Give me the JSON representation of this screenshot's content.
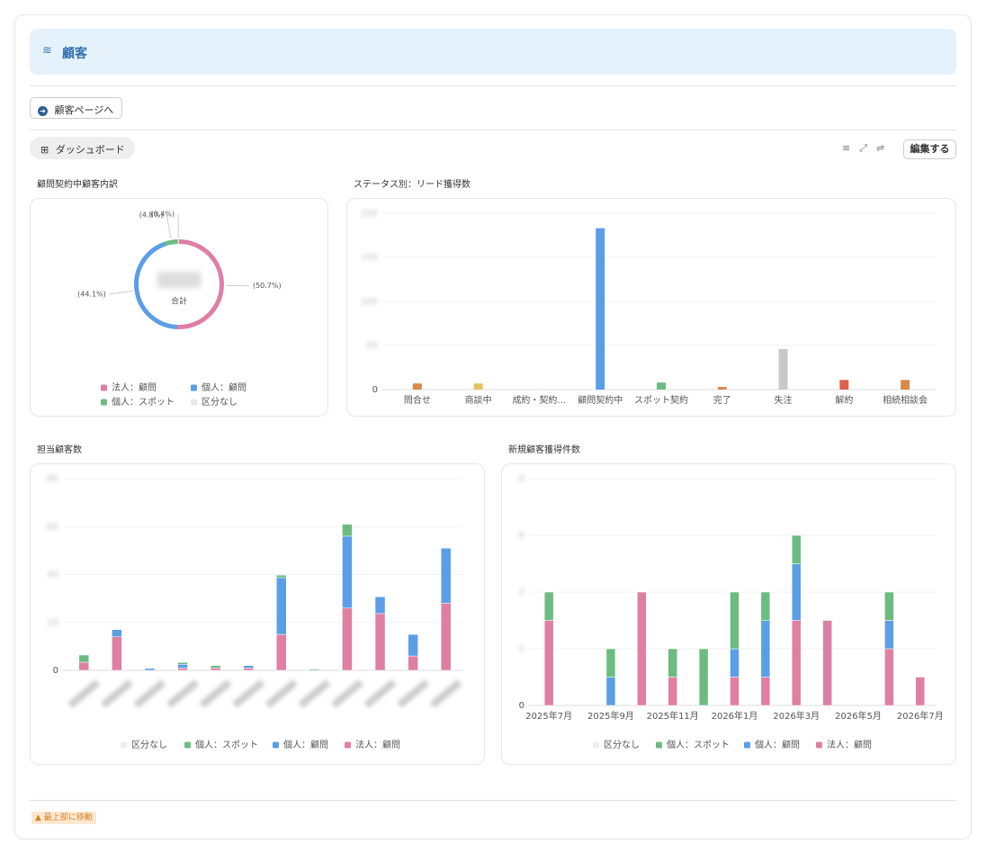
{
  "header": {
    "title": "顧客"
  },
  "nav": {
    "button": "顧客ページへ"
  },
  "toolbar": {
    "tab": "ダッシュボード",
    "edit": "編集する"
  },
  "footer": {
    "link": "▲ 最上部に移動"
  },
  "chart_data": [
    {
      "type": "pie",
      "title": "顧問契約中顧客内訳",
      "center_label": "合計",
      "categories": [
        "法人：顧問",
        "個人：顧問",
        "個人：スポット",
        "区分なし"
      ],
      "values": [
        50.7,
        44.1,
        4.8,
        0.4
      ],
      "value_labels": [
        "(50.7%)",
        "(44.1%)",
        "(4.8%)",
        "(0.4%)"
      ],
      "colors": [
        "#df7fa2",
        "#5b9ee6",
        "#6dbb82",
        "#e8e8e8"
      ]
    },
    {
      "type": "bar",
      "title": "ステータス別：リード獲得数",
      "categories": [
        "問合せ",
        "商談中",
        "成約・契約…",
        "顧問契約中",
        "スポット契約",
        "完了",
        "失注",
        "解約",
        "相続相談会"
      ],
      "values": [
        7,
        7,
        0.5,
        183,
        8,
        3,
        46,
        11,
        11
      ],
      "colors": [
        "#d9894a",
        "#e8c060",
        "#e0e0e0",
        "#5b9ee6",
        "#6dbb82",
        "#d9894a",
        "#c8c8c8",
        "#e06050",
        "#d9894a"
      ],
      "ylim": [
        0,
        200
      ],
      "yticks": [
        0,
        50,
        100,
        150,
        200
      ],
      "grid": true
    },
    {
      "type": "stacked_bar",
      "title": "担当顧客数",
      "categories": [
        null,
        null,
        null,
        null,
        null,
        null,
        null,
        null,
        null,
        null,
        null,
        null
      ],
      "series": [
        {
          "name": "区分なし",
          "color": "#eeeeee",
          "values": [
            0,
            0,
            0,
            0,
            0,
            0,
            0,
            0,
            0,
            0,
            0,
            0
          ]
        },
        {
          "name": "個人：スポット",
          "color": "#6dbb82",
          "values": [
            3,
            0,
            0,
            0.8,
            1,
            0,
            1,
            0.5,
            5,
            0,
            0,
            0
          ]
        },
        {
          "name": "個人：顧問",
          "color": "#5b9ee6",
          "values": [
            0,
            3,
            0.8,
            1.5,
            0,
            1,
            23.7,
            0,
            30,
            7,
            9,
            23
          ]
        },
        {
          "name": "法人：顧問",
          "color": "#df7fa2",
          "values": [
            3.4,
            14,
            0,
            1,
            1,
            1,
            15,
            0,
            26,
            23.7,
            6,
            28
          ]
        }
      ],
      "ylim": [
        0,
        80
      ],
      "yticks": [
        0,
        20,
        40,
        60,
        80
      ],
      "grid": true
    },
    {
      "type": "stacked_bar",
      "title": "新規顧客獲得件数",
      "categories": [
        "2025年7月",
        null,
        "2025年9月",
        null,
        "2025年11月",
        null,
        "2026年1月",
        null,
        "2026年3月",
        null,
        "2026年5月",
        null,
        "2026年7月"
      ],
      "series": [
        {
          "name": "区分なし",
          "color": "#eeeeee",
          "values": [
            0,
            0,
            0,
            0,
            0,
            0,
            0,
            0,
            0,
            0,
            0,
            0,
            0
          ]
        },
        {
          "name": "個人：スポット",
          "color": "#6dbb82",
          "values": [
            1,
            0,
            1,
            0,
            1,
            2,
            2,
            1,
            1,
            0,
            0,
            1,
            0
          ]
        },
        {
          "name": "個人：顧問",
          "color": "#5b9ee6",
          "values": [
            0,
            0,
            1,
            0,
            0,
            0,
            1,
            2,
            2,
            0,
            0,
            1,
            0
          ]
        },
        {
          "name": "法人：顧問",
          "color": "#df7fa2",
          "values": [
            3,
            0,
            0,
            4,
            1,
            0,
            1,
            1,
            3,
            3,
            0,
            2,
            1
          ]
        }
      ],
      "ylim": [
        0,
        8
      ],
      "yticks": [
        0,
        2,
        4,
        6,
        8
      ],
      "grid": true
    }
  ]
}
